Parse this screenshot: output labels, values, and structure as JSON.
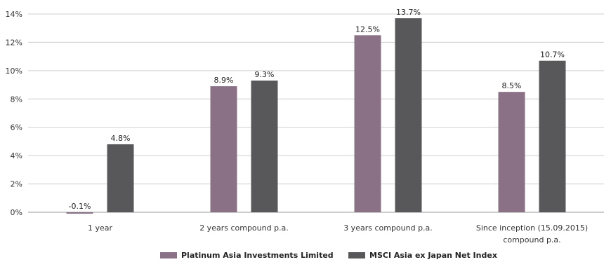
{
  "chart_data": {
    "type": "bar",
    "categories": [
      [
        "1 year"
      ],
      [
        "2 years compound p.a."
      ],
      [
        "3 years compound p.a."
      ],
      [
        "Since inception (15.09.2015)",
        "compound p.a."
      ]
    ],
    "series": [
      {
        "name": "Platinum Asia Investments Limited",
        "color": "#8a7186",
        "values": [
          -0.1,
          8.9,
          12.5,
          8.5
        ],
        "labels": [
          "-0.1%",
          "8.9%",
          "12.5%",
          "8.5%"
        ]
      },
      {
        "name": "MSCI Asia ex Japan Net Index",
        "color": "#58585a",
        "values": [
          4.8,
          9.3,
          13.7,
          10.7
        ],
        "labels": [
          "4.8%",
          "9.3%",
          "13.7%",
          "10.7%"
        ]
      }
    ],
    "yticks": [
      0,
      2,
      4,
      6,
      8,
      10,
      12,
      14
    ],
    "ytick_labels": [
      "0%",
      "2%",
      "4%",
      "6%",
      "8%",
      "10%",
      "12%",
      "14%"
    ],
    "ylim": [
      0,
      14
    ],
    "grid": true,
    "legend_position": "bottom-center"
  }
}
